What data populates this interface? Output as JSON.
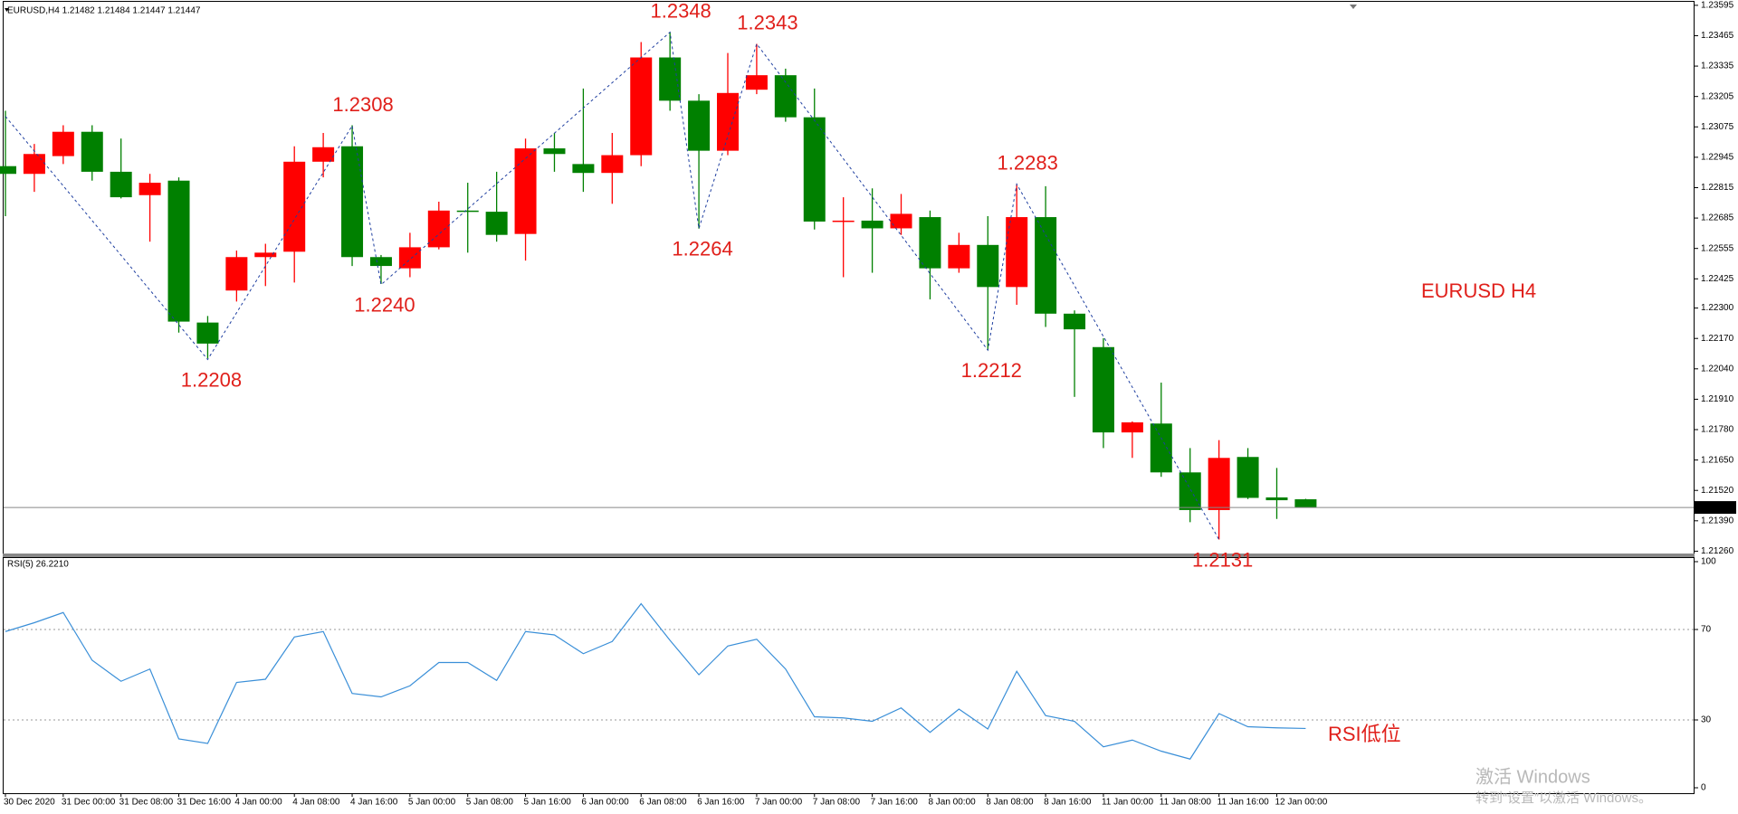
{
  "chart_data": [
    {
      "type": "candlestick",
      "title": "EURUSD,H4  1.21482 1.21484 1.21447 1.21447",
      "categories": [
        "30 Dec 2020",
        null,
        "31 Dec 00:00",
        null,
        "31 Dec 08:00",
        null,
        "31 Dec 16:00",
        null,
        "4 Jan 00:00",
        null,
        "4 Jan 08:00",
        null,
        "4 Jan 16:00",
        null,
        "5 Jan 00:00",
        null,
        "5 Jan 08:00",
        null,
        "5 Jan 16:00",
        null,
        "6 Jan 00:00",
        null,
        "6 Jan 08:00",
        null,
        "6 Jan 16:00",
        null,
        "7 Jan 00:00",
        null,
        "7 Jan 08:00",
        null,
        "7 Jan 16:00",
        null,
        "8 Jan 00:00",
        null,
        "8 Jan 08:00",
        null,
        "8 Jan 16:00",
        null,
        "11 Jan 00:00",
        null,
        "11 Jan 08:00",
        null,
        "11 Jan 16:00",
        null,
        "12 Jan 00:00",
        null
      ],
      "open": [
        1.22907,
        1.22874,
        1.2295,
        1.23054,
        1.22883,
        1.22783,
        1.22845,
        1.22238,
        1.22375,
        1.22518,
        1.22541,
        1.22926,
        1.22992,
        1.22518,
        1.2247,
        1.2256,
        1.22717,
        1.22712,
        1.22617,
        1.22983,
        1.22916,
        1.22878,
        1.22954,
        1.23372,
        1.23187,
        1.22973,
        1.23234,
        1.23296,
        1.23116,
        1.2267,
        1.22674,
        1.22641,
        1.22689,
        1.2247,
        1.2257,
        1.2239,
        1.22689,
        1.22276,
        1.22133,
        1.21768,
        1.21806,
        1.21597,
        1.21436,
        1.21663,
        1.2149,
        1.21482
      ],
      "high": [
        1.23144,
        1.23002,
        1.23082,
        1.23082,
        1.23025,
        1.22874,
        1.22859,
        1.22266,
        1.22546,
        1.22575,
        1.22992,
        1.23049,
        1.23082,
        1.22527,
        1.22622,
        1.22755,
        1.22836,
        1.22883,
        1.23025,
        1.23049,
        1.23239,
        1.23049,
        1.23438,
        1.2348,
        1.23215,
        1.23391,
        1.2343,
        1.23324,
        1.23239,
        1.22774,
        1.22812,
        1.22788,
        1.22717,
        1.22622,
        1.22693,
        1.2283,
        1.22821,
        1.2229,
        1.22171,
        1.21815,
        1.21981,
        1.21701,
        1.21735,
        1.21701,
        1.21616,
        1.21484
      ],
      "low": [
        1.22693,
        1.22797,
        1.22916,
        1.22845,
        1.22769,
        1.22584,
        1.22195,
        1.22085,
        1.22328,
        1.22394,
        1.22409,
        1.22859,
        1.2248,
        1.22403,
        1.22432,
        1.22551,
        1.22537,
        1.22584,
        1.22503,
        1.22883,
        1.22797,
        1.22746,
        1.22907,
        1.23144,
        1.2264,
        1.22954,
        1.23215,
        1.23097,
        1.22636,
        1.22432,
        1.22451,
        1.22613,
        1.22337,
        1.22451,
        1.2212,
        1.22314,
        1.22219,
        1.2192,
        1.21701,
        1.21659,
        1.21578,
        1.21384,
        1.2131,
        1.21483,
        1.21398,
        1.21447
      ],
      "close": [
        1.22874,
        1.22959,
        1.23054,
        1.22883,
        1.22774,
        1.22836,
        1.22242,
        1.22148,
        1.22518,
        1.22537,
        1.22926,
        1.22988,
        1.22518,
        1.2248,
        1.2256,
        1.22717,
        1.22712,
        1.22613,
        1.22983,
        1.22959,
        1.22878,
        1.22954,
        1.23372,
        1.23187,
        1.22973,
        1.2322,
        1.23296,
        1.23116,
        1.2267,
        1.22674,
        1.22641,
        1.22703,
        1.2247,
        1.2257,
        1.2239,
        1.22689,
        1.22276,
        1.22209,
        1.21768,
        1.21811,
        1.21597,
        1.21436,
        1.21659,
        1.21488,
        1.21478,
        1.21447
      ],
      "up_color": "#ff0000",
      "down_color": "#008000",
      "ylim": [
        1.2125,
        1.2361
      ],
      "yticks": [
        1.23595,
        1.23465,
        1.23335,
        1.23205,
        1.23075,
        1.22945,
        1.22815,
        1.22685,
        1.22555,
        1.22425,
        {
          "value": 1.223,
          "label": "1.22300"
        },
        {
          "value": 1.2217,
          "label": "1.22170"
        },
        {
          "value": 1.2204,
          "label": "1.22040"
        },
        {
          "value": 1.2191,
          "label": "1.21910"
        },
        {
          "value": 1.2178,
          "label": "1.21780"
        },
        {
          "value": 1.2165,
          "label": "1.21650"
        },
        {
          "value": 1.2152,
          "label": "1.21520"
        },
        {
          "value": 1.2139,
          "label": "1.21390"
        },
        {
          "value": 1.2126,
          "label": "1.21260"
        }
      ],
      "grid": false,
      "last_price": 1.21447,
      "zigzag": {
        "color": "#1f3fa0",
        "x": [
          0,
          7,
          12,
          13,
          23,
          24,
          26,
          34,
          35,
          42
        ],
        "values": [
          1.2312,
          1.2208,
          1.2308,
          1.224,
          1.2348,
          1.2264,
          1.2343,
          1.2212,
          1.2283,
          1.2131
        ],
        "value_labels": [
          null,
          "1.2208",
          "1.2308",
          "1.2240",
          "1.2348",
          "1.2264",
          "1.2343",
          "1.2212",
          "1.2283",
          "1.2131"
        ],
        "label_color": "#e0201b"
      },
      "annotation": "EURUSD H4"
    },
    {
      "type": "line",
      "title": "RSI(5) 26.2210",
      "values": [
        69.1,
        73,
        77.5,
        56.4,
        47.1,
        52.5,
        21.6,
        19.6,
        46.6,
        48,
        66.7,
        69.1,
        41.7,
        40.2,
        45.1,
        55.4,
        55.4,
        47.5,
        69.1,
        67.6,
        59.3,
        64.7,
        81.4,
        65.2,
        50,
        62.7,
        65.7,
        52.5,
        31.4,
        30.9,
        29.4,
        35.3,
        24.5,
        34.8,
        26,
        51.5,
        31.9,
        29.4,
        18.1,
        21.1,
        16.2,
        12.7,
        32.8,
        27,
        26.5,
        26.221
      ],
      "color": "#3a8fd8",
      "ylim": [
        0,
        100
      ],
      "yticks": [
        0,
        30,
        70,
        100
      ],
      "grid": true,
      "annotation": "RSI低位"
    }
  ],
  "watermark": {
    "line1": "激活 Windows",
    "line2": "转到“设置”以激活 Windows。"
  }
}
